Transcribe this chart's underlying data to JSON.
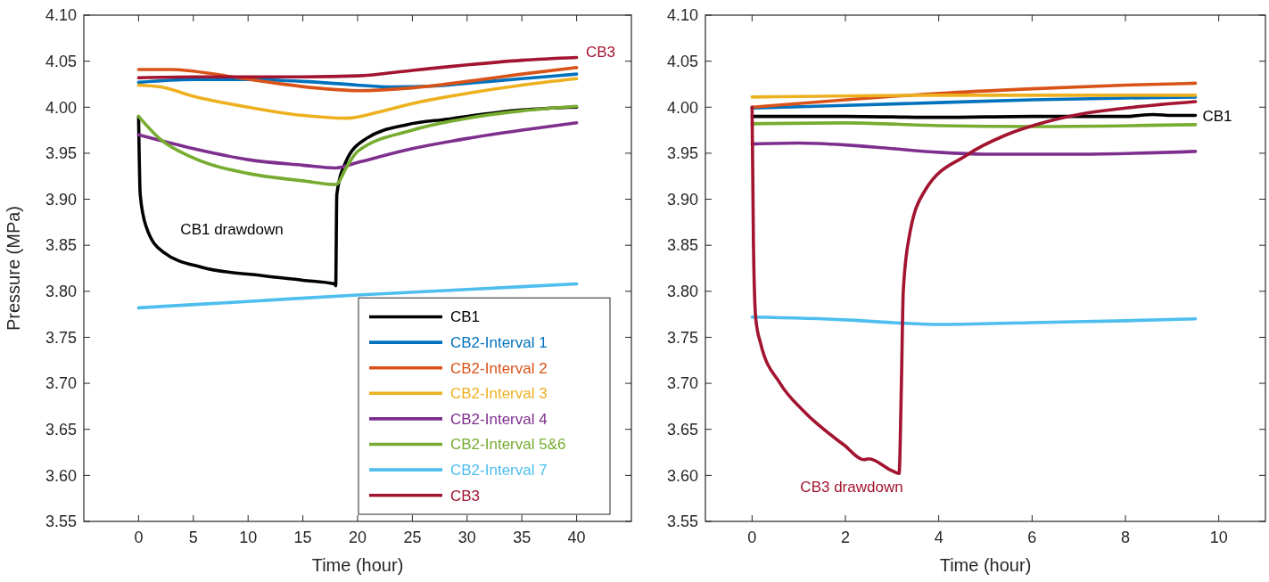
{
  "chart_data": [
    {
      "type": "line",
      "xlabel": "Time (hour)",
      "ylabel": "Pressure (MPa)",
      "xlim": [
        -5,
        45
      ],
      "xticks": [
        0,
        5,
        10,
        15,
        20,
        25,
        30,
        35,
        40
      ],
      "ylim": [
        3.55,
        4.1
      ],
      "yticks": [
        {
          "value": 3.55,
          "label": "3.55"
        },
        {
          "value": 3.6,
          "label": "3.60"
        },
        {
          "value": 3.65,
          "label": "3.65"
        },
        {
          "value": 3.7,
          "label": "3.70"
        },
        {
          "value": 3.75,
          "label": "3.75"
        },
        {
          "value": 3.8,
          "label": "3.80"
        },
        {
          "value": 3.85,
          "label": "3.85"
        },
        {
          "value": 3.9,
          "label": "3.90"
        },
        {
          "value": 3.95,
          "label": "3.95"
        },
        {
          "value": 4.0,
          "label": "4.00"
        },
        {
          "value": 4.05,
          "label": "4.05"
        },
        {
          "value": 4.1,
          "label": "4.10"
        }
      ],
      "legend": "bottom right",
      "line_style": "solid",
      "marker": "none",
      "annotations": [
        "CB1 drawdown",
        "CB3"
      ],
      "series": [
        {
          "name": "CB1",
          "color": "#000000",
          "x": [
            0,
            0.15,
            0.7,
            2.2,
            5.8,
            11.3,
            15,
            17.9,
            18,
            18.1,
            18.9,
            20.8,
            24.5,
            28.2,
            35,
            40
          ],
          "values": [
            3.99,
            3.905,
            3.87,
            3.843,
            3.826,
            3.817,
            3.812,
            3.808,
            3.806,
            3.905,
            3.94,
            3.966,
            3.981,
            3.987,
            3.997,
            4.0
          ]
        },
        {
          "name": "CB2-Interval 1",
          "color": "#0072bd",
          "x": [
            0,
            5,
            10,
            15,
            20,
            23,
            27,
            30,
            35,
            40
          ],
          "values": [
            4.027,
            4.03,
            4.03,
            4.028,
            4.024,
            4.022,
            4.023,
            4.026,
            4.031,
            4.036
          ]
        },
        {
          "name": "CB2-Interval 2",
          "color": "#d95319",
          "x": [
            0,
            3,
            8,
            12,
            17,
            20,
            25,
            30,
            35,
            40
          ],
          "values": [
            4.041,
            4.041,
            4.034,
            4.027,
            4.02,
            4.018,
            4.021,
            4.028,
            4.036,
            4.043
          ]
        },
        {
          "name": "CB2-Interval 3",
          "color": "#edb120",
          "x": [
            0,
            2,
            5,
            10,
            15,
            19,
            22,
            25,
            30,
            35,
            40
          ],
          "values": [
            4.024,
            4.022,
            4.012,
            4.0,
            3.991,
            3.988,
            3.995,
            4.004,
            4.015,
            4.024,
            4.031
          ]
        },
        {
          "name": "CB2-Interval 4",
          "color": "#7e2f8e",
          "x": [
            0,
            5,
            10,
            15,
            18,
            20,
            25,
            30,
            35,
            40
          ],
          "values": [
            3.97,
            3.955,
            3.943,
            3.937,
            3.934,
            3.94,
            3.955,
            3.966,
            3.975,
            3.983
          ]
        },
        {
          "name": "CB2-Interval 5&6",
          "color": "#77ac30",
          "x": [
            0,
            2,
            5,
            10,
            15,
            18,
            19,
            20,
            25,
            30,
            35,
            40
          ],
          "values": [
            3.99,
            3.965,
            3.945,
            3.928,
            3.92,
            3.916,
            3.935,
            3.952,
            3.975,
            3.988,
            3.996,
            4.001
          ]
        },
        {
          "name": "CB2-Interval 7",
          "color": "#4dbeee",
          "x": [
            0,
            10,
            20,
            30,
            40
          ],
          "values": [
            3.782,
            3.789,
            3.796,
            3.802,
            3.808
          ]
        },
        {
          "name": "CB3",
          "color": "#a2142f",
          "x": [
            0,
            5,
            10,
            15,
            20,
            25,
            30,
            35,
            40
          ],
          "values": [
            4.032,
            4.033,
            4.033,
            4.033,
            4.034,
            4.04,
            4.046,
            4.051,
            4.054
          ]
        }
      ]
    },
    {
      "type": "line",
      "xlabel": "Time (hour)",
      "xlim": [
        -1,
        11
      ],
      "xticks": [
        0,
        2,
        4,
        6,
        8,
        10
      ],
      "ylim": [
        3.55,
        4.1
      ],
      "yticks": [
        {
          "value": 3.55,
          "label": "3.55"
        },
        {
          "value": 3.6,
          "label": "3.60"
        },
        {
          "value": 3.65,
          "label": "3.65"
        },
        {
          "value": 3.7,
          "label": "3.70"
        },
        {
          "value": 3.75,
          "label": "3.75"
        },
        {
          "value": 3.8,
          "label": "3.80"
        },
        {
          "value": 3.85,
          "label": "3.85"
        },
        {
          "value": 3.9,
          "label": "3.90"
        },
        {
          "value": 3.95,
          "label": "3.95"
        },
        {
          "value": 4.0,
          "label": "4.00"
        },
        {
          "value": 4.05,
          "label": "4.05"
        },
        {
          "value": 4.1,
          "label": "4.10"
        }
      ],
      "legend": false,
      "line_style": "solid",
      "marker": "none",
      "annotations": [
        "CB3 drawdown"
      ],
      "series": [
        {
          "name": "CB1",
          "color": "#000000",
          "x": [
            0,
            2,
            4,
            6,
            8,
            8.6,
            9,
            9.5
          ],
          "values": [
            3.99,
            3.99,
            3.989,
            3.99,
            3.99,
            3.992,
            3.991,
            3.991
          ]
        },
        {
          "color": "#0072bd",
          "x": [
            0,
            2,
            4,
            6,
            8,
            9.5
          ],
          "values": [
            3.999,
            4.002,
            4.005,
            4.008,
            4.01,
            4.011
          ]
        },
        {
          "color": "#d95319",
          "x": [
            0,
            2,
            4,
            6,
            8,
            9.5
          ],
          "values": [
            4.0,
            4.008,
            4.015,
            4.02,
            4.024,
            4.026
          ]
        },
        {
          "color": "#edb120",
          "x": [
            0,
            4,
            9.5
          ],
          "values": [
            4.011,
            4.013,
            4.013
          ]
        },
        {
          "color": "#7e2f8e",
          "x": [
            0,
            1,
            2,
            3,
            4,
            5,
            7,
            9.5
          ],
          "values": [
            3.96,
            3.961,
            3.959,
            3.955,
            3.951,
            3.949,
            3.949,
            3.952
          ]
        },
        {
          "color": "#77ac30",
          "x": [
            0,
            2,
            4,
            6,
            9.5
          ],
          "values": [
            3.982,
            3.983,
            3.98,
            3.979,
            3.981
          ]
        },
        {
          "color": "#4dbeee",
          "x": [
            0,
            2,
            3,
            4,
            6,
            8,
            9.5
          ],
          "values": [
            3.772,
            3.769,
            3.766,
            3.764,
            3.766,
            3.768,
            3.77
          ]
        },
        {
          "color": "#a2142f",
          "x": [
            0,
            0.03,
            0.08,
            0.18,
            0.6,
            1.1,
            1.97,
            2.4,
            2.5,
            3.0,
            3.15,
            3.2,
            3.24,
            3.37,
            3.71,
            4.6,
            5.45,
            6.3,
            7.1,
            8,
            9.5
          ],
          "values": [
            4.0,
            3.85,
            3.77,
            3.744,
            3.7,
            3.67,
            3.633,
            3.617,
            3.618,
            3.605,
            3.602,
            3.7,
            3.8,
            3.86,
            3.91,
            3.948,
            3.97,
            3.984,
            3.993,
            3.999,
            4.006
          ]
        }
      ]
    }
  ]
}
